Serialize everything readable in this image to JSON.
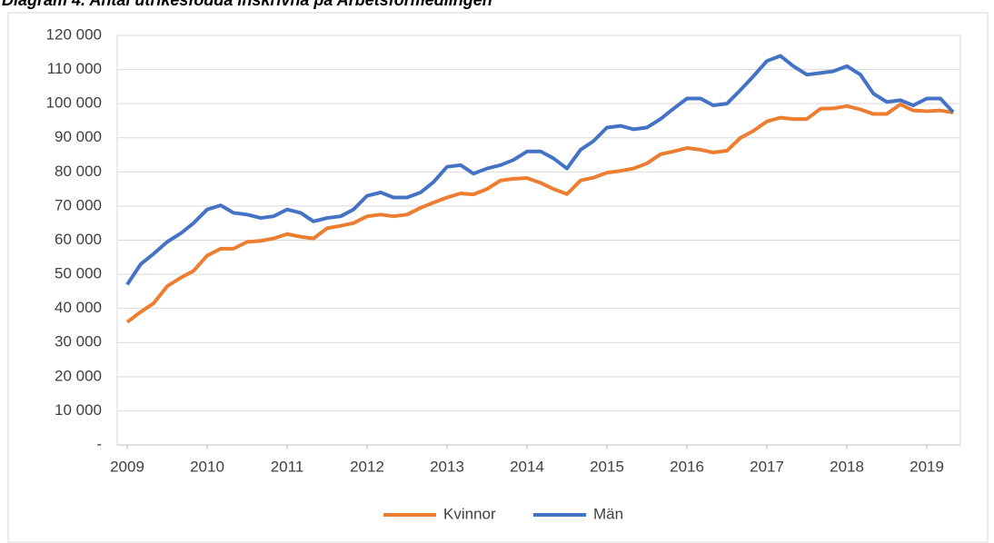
{
  "chart_data": {
    "type": "line",
    "title": "Diagram 4. Antal utrikesfödda inskrivna på Arbetsförmedlingen",
    "x": [
      2009,
      2009.17,
      2009.33,
      2009.5,
      2009.67,
      2009.83,
      2010,
      2010.17,
      2010.33,
      2010.5,
      2010.67,
      2010.83,
      2011,
      2011.17,
      2011.33,
      2011.5,
      2011.67,
      2011.83,
      2012,
      2012.17,
      2012.33,
      2012.5,
      2012.67,
      2012.83,
      2013,
      2013.17,
      2013.33,
      2013.5,
      2013.67,
      2013.83,
      2014,
      2014.17,
      2014.33,
      2014.5,
      2014.67,
      2014.83,
      2015,
      2015.17,
      2015.33,
      2015.5,
      2015.67,
      2015.83,
      2016,
      2016.17,
      2016.33,
      2016.5,
      2016.67,
      2016.83,
      2017,
      2017.17,
      2017.33,
      2017.5,
      2017.67,
      2017.83,
      2018,
      2018.17,
      2018.33,
      2018.5,
      2018.67,
      2018.83,
      2019,
      2019.17,
      2019.33
    ],
    "series": [
      {
        "name": "Kvinnor",
        "color": "#ed7d31",
        "values": [
          36000,
          39000,
          41500,
          46500,
          49000,
          51000,
          55500,
          57500,
          57500,
          59500,
          59800,
          60500,
          61800,
          61000,
          60500,
          63500,
          64200,
          65000,
          67000,
          67500,
          67000,
          67500,
          69500,
          71000,
          72500,
          73700,
          73400,
          75000,
          77500,
          78000,
          78200,
          76800,
          75000,
          73500,
          77500,
          78300,
          79800,
          80300,
          81000,
          82500,
          85200,
          86000,
          87000,
          86500,
          85700,
          86200,
          90000,
          92000,
          94800,
          95900,
          95500,
          95500,
          98500,
          98600,
          99300,
          98300,
          97000,
          97000,
          99800,
          98000,
          97800,
          98000,
          97400
        ]
      },
      {
        "name": "Män",
        "color": "#4472c4",
        "values": [
          47000,
          53000,
          56000,
          59500,
          62000,
          65000,
          69000,
          70200,
          68000,
          67500,
          66500,
          67000,
          69000,
          68000,
          65500,
          66500,
          67000,
          69000,
          73000,
          74000,
          72500,
          72500,
          74000,
          77000,
          81500,
          82000,
          79500,
          81000,
          82000,
          83500,
          86000,
          86000,
          84000,
          81000,
          86500,
          89000,
          93000,
          93500,
          92500,
          93000,
          95500,
          98500,
          101500,
          101500,
          99500,
          100000,
          104000,
          108000,
          112500,
          114000,
          111000,
          108500,
          109000,
          109500,
          111000,
          108500,
          103000,
          100500,
          101000,
          99500,
          101500,
          101500,
          97500
        ]
      }
    ],
    "xlim": [
      2009,
      2019.42
    ],
    "xticks": [
      2009,
      2010,
      2011,
      2012,
      2013,
      2014,
      2015,
      2016,
      2017,
      2018,
      2019
    ],
    "ylim": [
      0,
      120000
    ],
    "yticks": [
      {
        "value": 0,
        "label": "-"
      },
      {
        "value": 10000,
        "label": "10 000"
      },
      {
        "value": 20000,
        "label": "20 000"
      },
      {
        "value": 30000,
        "label": "30 000"
      },
      {
        "value": 40000,
        "label": "40 000"
      },
      {
        "value": 50000,
        "label": "50 000"
      },
      {
        "value": 60000,
        "label": "60 000"
      },
      {
        "value": 70000,
        "label": "70 000"
      },
      {
        "value": 80000,
        "label": "80 000"
      },
      {
        "value": 90000,
        "label": "90 000"
      },
      {
        "value": 100000,
        "label": "100 000"
      },
      {
        "value": 110000,
        "label": "110 000"
      },
      {
        "value": 120000,
        "label": "120 000"
      }
    ],
    "grid": true,
    "legend": "bottom"
  }
}
